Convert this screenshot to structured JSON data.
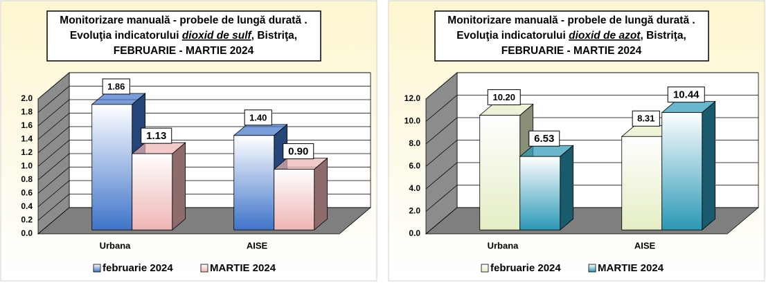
{
  "chart_data": [
    {
      "type": "bar3d",
      "title": [
        "Monitorizare manuală - probele de lungă durată .",
        [
          "Evoluţia indicatorului ",
          "dioxid de sulf",
          ", Bistriţa,"
        ],
        "FEBRUARIE  - MARTIE 2024"
      ],
      "categories": [
        "Urbana",
        "AISE"
      ],
      "series": [
        {
          "name": "februarie 2024",
          "color": "#3e74c9",
          "values": [
            1.86,
            1.4
          ],
          "value_labels": [
            "1.86",
            "1.40"
          ]
        },
        {
          "name": "MARTIE 2024",
          "color": "#eeb4b4",
          "values": [
            1.13,
            0.9
          ],
          "value_labels": [
            "1.13",
            "0.90"
          ]
        }
      ],
      "ylim": [
        0,
        2
      ],
      "yticks": [
        {
          "value": 0,
          "label": "0.0"
        },
        0.2,
        0.4,
        0.6,
        0.8,
        {
          "value": 1,
          "label": "1.0"
        },
        1.2,
        1.4,
        1.6,
        1.8,
        {
          "value": 2,
          "label": "2.0"
        }
      ],
      "grid": true,
      "legend": "bottom"
    },
    {
      "type": "bar3d",
      "title": [
        "Monitorizare manuală - probele de lungă durată .",
        [
          "Evoluţia indicatorului ",
          "dioxid de azot",
          ", Bistriţa,"
        ],
        "FEBRUARIE  - MARTIE 2024"
      ],
      "categories": [
        "Urbana",
        "AISE"
      ],
      "series": [
        {
          "name": "februarie 2024",
          "color": "#e4eec4",
          "values": [
            10.2,
            8.31
          ],
          "value_labels": [
            "10.20",
            "8.31"
          ]
        },
        {
          "name": "MARTIE 2024",
          "color": "#2a98b6",
          "values": [
            6.53,
            10.44
          ],
          "value_labels": [
            "6.53",
            "10.44"
          ]
        }
      ],
      "ylim": [
        0,
        12
      ],
      "yticks": [
        {
          "value": 0,
          "label": "0.0"
        },
        {
          "value": 2,
          "label": "2.0"
        },
        {
          "value": 4,
          "label": "4.0"
        },
        {
          "value": 6,
          "label": "6.0"
        },
        {
          "value": 8,
          "label": "8.0"
        },
        {
          "value": 10,
          "label": "10.0"
        },
        {
          "value": 12,
          "label": "12.0"
        }
      ],
      "grid": true,
      "legend": "bottom"
    }
  ]
}
